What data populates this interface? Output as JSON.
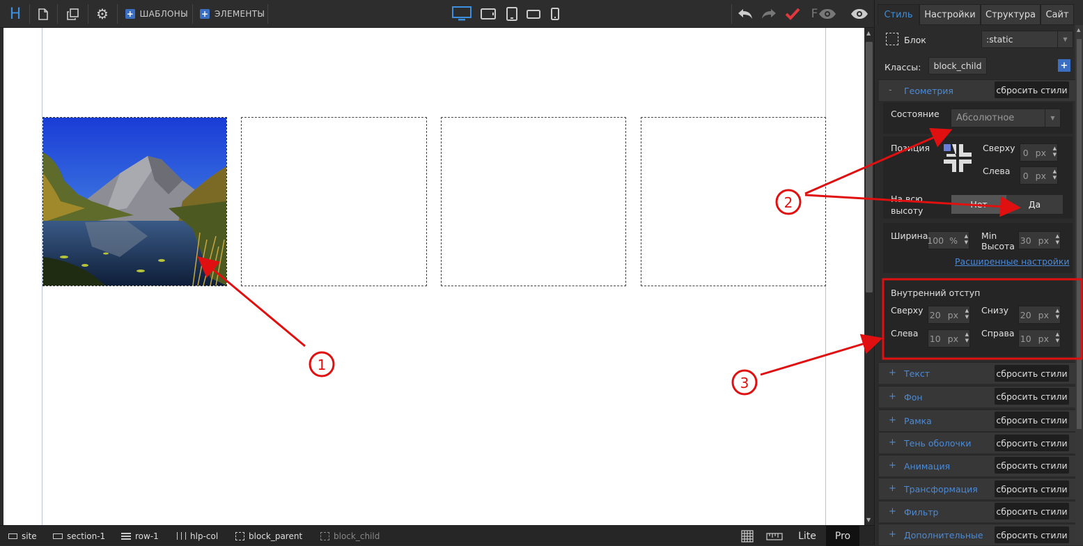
{
  "toolbar": {
    "logo": "H",
    "templates_label": "ШАБЛОНЫ",
    "elements_label": "ЭЛЕМЕНТЫ",
    "icons": [
      "new-page-icon",
      "copy-icon",
      "gear-icon",
      "desktop-icon",
      "tablet-landscape-icon",
      "tablet-portrait-icon",
      "phone-landscape-icon",
      "phone-portrait-icon",
      "undo-icon",
      "redo-icon",
      "checkmark-icon",
      "f-eye-icon",
      "eye-icon"
    ]
  },
  "breadcrumbs": [
    "site",
    "section-1",
    "row-1",
    "hlp-col",
    "block_parent",
    "block_child"
  ],
  "bottom_right": {
    "lite_label": "Lite",
    "pro_label": "Pro"
  },
  "panel": {
    "tabs": [
      "Стиль",
      "Настройки",
      "Структура",
      "Сайт"
    ],
    "block_label": "Блок",
    "state_select": ":static",
    "classes_label": "Классы:",
    "class_value": "block_child",
    "geometry": {
      "title": "Геометрия",
      "reset_label": "сбросить стили",
      "state_label": "Состояние",
      "state_value": "Абсолютное",
      "position_label": "Позиция",
      "top_label": "Сверху",
      "top_value": "0",
      "left_label": "Слева",
      "left_value": "0",
      "unit_px": "px",
      "full_height_label_1": "На всю",
      "full_height_label_2": "высоту",
      "no_label": "Нет",
      "yes_label": "Да",
      "width_label": "Ширина",
      "width_value": "100",
      "unit_pct": "%",
      "min_height_label_1": "Min",
      "min_height_label_2": "Высота",
      "min_height_value": "30",
      "advanced_link": "Расширенные настройки",
      "padding_title": "Внутренний отступ",
      "pad_top_label": "Сверху",
      "pad_top_value": "20",
      "pad_bottom_label": "Снизу",
      "pad_bottom_value": "20",
      "pad_left_label": "Слева",
      "pad_left_value": "10",
      "pad_right_label": "Справа",
      "pad_right_value": "10"
    },
    "sections": [
      {
        "name": "Текст",
        "reset": "сбросить стили"
      },
      {
        "name": "Фон",
        "reset": "сбросить стили"
      },
      {
        "name": "Рамка",
        "reset": "сбросить стили"
      },
      {
        "name": "Тень оболочки",
        "reset": "сбросить стили"
      },
      {
        "name": "Анимация",
        "reset": "сбросить стили"
      },
      {
        "name": "Трансформация",
        "reset": "сбросить стили"
      },
      {
        "name": "Фильтр",
        "reset": "сбросить стили"
      },
      {
        "name": "Дополнительные",
        "reset": "сбросить стили"
      }
    ]
  },
  "annotations": [
    "1",
    "2",
    "3"
  ],
  "colors": {
    "accent": "#3d8fe0",
    "annotation": "#e01010",
    "panel_bg": "#2e2e2e"
  }
}
